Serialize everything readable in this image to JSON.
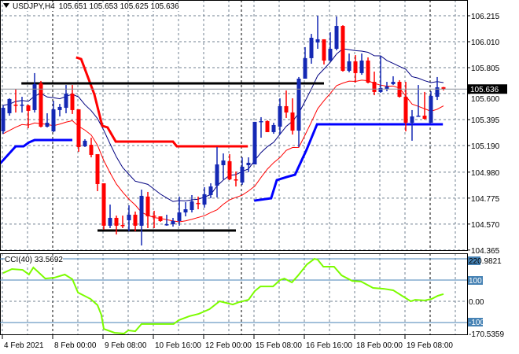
{
  "header": {
    "symbol": "USDJPY,H4",
    "ohlc": "105.651 105.653 105.625 105.636",
    "menu_icon": "triangle-down-icon"
  },
  "colors": {
    "bull": "#1428b4",
    "bear": "#ff0000",
    "ma_high": "#000080",
    "ma_low": "#ff0000",
    "upper_band": "#ff0000",
    "lower_band": "#0000ff",
    "cci_line": "#7cfc00",
    "cci_levels": "#4682b4",
    "grid": "#708090"
  },
  "chart_data": {
    "type": "candlestick",
    "title": "USDJPY,H4",
    "ylim": [
      104.365,
      106.215
    ],
    "y_ticks": [
      "106.215",
      "106.010",
      "105.805",
      "105.600",
      "105.395",
      "105.190",
      "104.980",
      "104.775",
      "104.570",
      "104.365"
    ],
    "current_price": "105.636",
    "x_ticks": [
      {
        "idx": 0,
        "label": "4 Feb 2021"
      },
      {
        "idx": 8,
        "label": "8 Feb 00:00"
      },
      {
        "idx": 16,
        "label": "9 Feb 08:00"
      },
      {
        "idx": 24,
        "label": "10 Feb 16:00"
      },
      {
        "idx": 32,
        "label": "12 Feb 00:00"
      },
      {
        "idx": 40,
        "label": "15 Feb 08:00"
      },
      {
        "idx": 48,
        "label": "16 Feb 16:00"
      },
      {
        "idx": 56,
        "label": "18 Feb 00:00"
      },
      {
        "idx": 64,
        "label": "19 Feb 08:00"
      }
    ],
    "candle_fields": [
      "open",
      "high",
      "low",
      "close"
    ],
    "candles": [
      [
        105.302,
        105.507,
        105.283,
        105.488
      ],
      [
        105.445,
        105.563,
        105.426,
        105.557
      ],
      [
        105.513,
        105.637,
        105.451,
        105.507
      ],
      [
        105.507,
        105.575,
        105.451,
        105.513
      ],
      [
        105.507,
        105.513,
        105.327,
        105.464
      ],
      [
        105.47,
        105.762,
        105.451,
        105.675
      ],
      [
        105.681,
        105.7,
        105.333,
        105.339
      ],
      [
        105.339,
        105.445,
        105.333,
        105.37
      ],
      [
        105.302,
        105.544,
        105.296,
        105.476
      ],
      [
        105.47,
        105.519,
        105.42,
        105.495
      ],
      [
        105.488,
        105.668,
        105.445,
        105.6
      ],
      [
        105.6,
        105.668,
        105.439,
        105.47
      ],
      [
        105.476,
        105.476,
        105.141,
        105.178
      ],
      [
        105.184,
        105.24,
        105.178,
        105.228
      ],
      [
        105.196,
        105.252,
        105.097,
        105.116
      ],
      [
        105.122,
        105.122,
        104.83,
        104.886
      ],
      [
        104.892,
        104.892,
        104.526,
        104.557
      ],
      [
        104.557,
        104.724,
        104.538,
        104.619
      ],
      [
        104.619,
        104.637,
        104.488,
        104.557
      ],
      [
        104.563,
        104.637,
        104.538,
        104.557
      ],
      [
        104.6,
        104.718,
        104.513,
        104.644
      ],
      [
        104.644,
        104.669,
        104.513,
        104.557
      ],
      [
        104.557,
        104.842,
        104.401,
        104.793
      ],
      [
        104.787,
        104.824,
        104.538,
        104.631
      ],
      [
        104.637,
        104.675,
        104.538,
        104.631
      ],
      [
        104.631,
        104.631,
        104.588,
        104.594
      ],
      [
        104.563,
        104.644,
        104.557,
        104.569
      ],
      [
        104.569,
        104.619,
        104.55,
        104.594
      ],
      [
        104.594,
        104.787,
        104.557,
        104.662
      ],
      [
        104.662,
        104.743,
        104.631,
        104.687
      ],
      [
        104.681,
        104.799,
        104.662,
        104.749
      ],
      [
        104.737,
        104.787,
        104.687,
        104.731
      ],
      [
        104.724,
        104.861,
        104.7,
        104.805
      ],
      [
        104.799,
        104.892,
        104.774,
        104.867
      ],
      [
        104.873,
        105.178,
        104.78,
        105.041
      ],
      [
        105.035,
        105.128,
        104.923,
        105.072
      ],
      [
        105.066,
        105.122,
        104.917,
        104.923
      ],
      [
        104.923,
        104.985,
        104.867,
        104.917
      ],
      [
        104.898,
        105.097,
        104.88,
        105.023
      ],
      [
        105.035,
        105.097,
        104.979,
        105.054
      ],
      [
        105.041,
        105.377,
        105.041,
        105.377
      ],
      [
        105.377,
        105.414,
        105.252,
        105.383
      ],
      [
        105.383,
        105.389,
        105.296,
        105.296
      ],
      [
        105.296,
        105.37,
        105.283,
        105.352
      ],
      [
        105.339,
        105.563,
        105.277,
        105.501
      ],
      [
        105.501,
        105.625,
        105.408,
        105.451
      ],
      [
        105.451,
        105.563,
        105.277,
        105.308
      ],
      [
        105.308,
        105.731,
        105.178,
        105.718
      ],
      [
        105.718,
        105.967,
        105.718,
        105.88
      ],
      [
        105.88,
        106.072,
        105.836,
        106.041
      ],
      [
        106.004,
        106.215,
        105.954,
        106.029
      ],
      [
        106.029,
        106.029,
        105.83,
        105.861
      ],
      [
        105.861,
        106.085,
        105.855,
        105.954
      ],
      [
        105.954,
        106.209,
        105.942,
        106.134
      ],
      [
        106.134,
        106.14,
        105.774,
        105.78
      ],
      [
        105.78,
        105.917,
        105.768,
        105.855
      ],
      [
        105.855,
        105.904,
        105.687,
        105.762
      ],
      [
        105.762,
        105.917,
        105.749,
        105.861
      ],
      [
        105.861,
        105.886,
        105.681,
        105.687
      ],
      [
        105.693,
        105.774,
        105.588,
        105.613
      ],
      [
        105.613,
        105.898,
        105.606,
        105.644
      ],
      [
        105.637,
        105.693,
        105.619,
        105.656
      ],
      [
        105.675,
        105.737,
        105.668,
        105.693
      ],
      [
        105.693,
        105.706,
        105.569,
        105.575
      ],
      [
        105.575,
        105.693,
        105.302,
        105.37
      ],
      [
        105.37,
        105.47,
        105.228,
        105.42
      ],
      [
        105.42,
        105.668,
        105.42,
        105.426
      ],
      [
        105.426,
        105.613,
        105.395,
        105.401
      ],
      [
        105.37,
        105.619,
        105.37,
        105.582
      ],
      [
        105.575,
        105.731,
        105.55,
        105.65
      ],
      [
        105.651,
        105.653,
        105.625,
        105.636
      ]
    ],
    "upper_band_thick": [
      [
        11.6,
        105.886
      ],
      [
        12.4,
        105.873
      ],
      [
        14.5,
        105.594
      ],
      [
        15.75,
        105.346
      ],
      [
        16.6,
        105.333
      ],
      [
        17.9,
        105.221
      ],
      [
        27,
        105.221
      ],
      [
        27.6,
        105.184
      ],
      [
        38.9,
        105.184
      ]
    ],
    "lower_band_thick": [
      [
        [
          -0.5,
          105.047
        ],
        [
          2,
          105.184
        ],
        [
          3.25,
          105.184
        ],
        [
          4.1,
          105.215
        ],
        [
          5,
          105.234
        ],
        [
          11,
          105.234
        ]
      ],
      [
        [
          39.9,
          104.755
        ],
        [
          42.6,
          104.774
        ],
        [
          43.5,
          104.917
        ],
        [
          45.1,
          104.942
        ],
        [
          46.4,
          104.96
        ],
        [
          48.25,
          105.159
        ],
        [
          49.9,
          105.358
        ],
        [
          69.9,
          105.358
        ]
      ]
    ],
    "horizontal_lines": [
      {
        "from": 2.9,
        "to": 51,
        "price": 105.681
      },
      {
        "from": 15,
        "to": 37,
        "price": 104.519
      }
    ],
    "cci": {
      "name": "CCI(40)",
      "value": "33.5692",
      "y_labels": {
        "max": "220.9821",
        "l100": "100",
        "zero": "0.00",
        "lm100": "-100",
        "min": "-170.5359"
      },
      "levels": [
        200,
        100,
        -100
      ],
      "points": [
        [
          0,
          133
        ],
        [
          1.4,
          152
        ],
        [
          3.1,
          148
        ],
        [
          4.1,
          126
        ],
        [
          4.8,
          159
        ],
        [
          6.7,
          107
        ],
        [
          8.1,
          111
        ],
        [
          9.8,
          126
        ],
        [
          11,
          104
        ],
        [
          11.9,
          41
        ],
        [
          13.9,
          11
        ],
        [
          15,
          -18
        ],
        [
          15.6,
          -63
        ],
        [
          16,
          -130
        ],
        [
          17.7,
          -148
        ],
        [
          19.2,
          -152
        ],
        [
          19.9,
          -137
        ],
        [
          21,
          -141
        ],
        [
          22,
          -107
        ],
        [
          23.2,
          -107
        ],
        [
          27.1,
          -107
        ],
        [
          27.9,
          -89
        ],
        [
          29.6,
          -70
        ],
        [
          31.1,
          -59
        ],
        [
          32.8,
          -37
        ],
        [
          34.4,
          0
        ],
        [
          35.4,
          -7
        ],
        [
          36.5,
          -15
        ],
        [
          37.5,
          -4
        ],
        [
          39,
          7
        ],
        [
          40,
          48
        ],
        [
          40.9,
          70
        ],
        [
          42.9,
          70
        ],
        [
          44,
          100
        ],
        [
          44.7,
          107
        ],
        [
          45.9,
          89
        ],
        [
          46.9,
          122
        ],
        [
          48.3,
          174
        ],
        [
          49.5,
          200
        ],
        [
          50,
          196
        ],
        [
          50.9,
          163
        ],
        [
          52.6,
          163
        ],
        [
          53.8,
          122
        ],
        [
          55.5,
          96
        ],
        [
          56.9,
          93
        ],
        [
          58.8,
          63
        ],
        [
          60.5,
          59
        ],
        [
          62,
          52
        ],
        [
          63.4,
          26
        ],
        [
          64.8,
          0
        ],
        [
          65.5,
          7
        ],
        [
          67,
          4
        ],
        [
          68.1,
          11
        ],
        [
          69.1,
          26
        ],
        [
          70,
          34
        ]
      ]
    }
  }
}
